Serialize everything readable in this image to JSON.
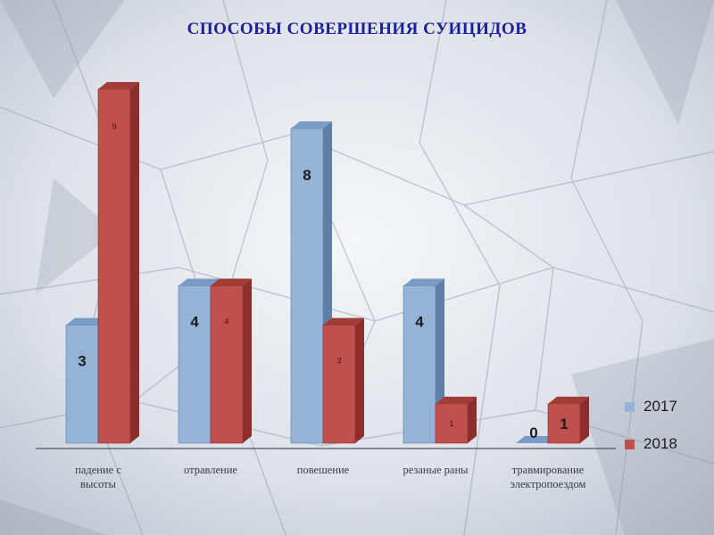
{
  "title": "СПОСОБЫ СОВЕРШЕНИЯ СУИЦИДОВ",
  "colors": {
    "series_2017": "#95b3d7",
    "series_2017_side": "#5f7ea8",
    "series_2017_top": "#7a9bc6",
    "series_2018": "#c0504d",
    "series_2018_side": "#8c2f2c",
    "series_2018_top": "#a13c39",
    "title": "#1d1e9b"
  },
  "chart_data": {
    "type": "bar",
    "title": "СПОСОБЫ СОВЕРШЕНИЯ СУИЦИДОВ",
    "categories": [
      [
        "падение с",
        "высоты"
      ],
      [
        "отравление"
      ],
      [
        "повешение"
      ],
      [
        "резаные раны"
      ],
      [
        "травмирование",
        "электропоездом"
      ]
    ],
    "series": [
      {
        "name": "2017",
        "values": [
          3,
          4,
          8,
          4,
          0
        ],
        "label_style": [
          "big",
          "big",
          "big",
          "big",
          "big"
        ]
      },
      {
        "name": "2018",
        "values": [
          9,
          4,
          3,
          1,
          1
        ],
        "label_style": [
          "small",
          "small",
          "small",
          "small",
          "big"
        ]
      }
    ],
    "ylim": [
      0,
      9
    ],
    "grid": false,
    "legend_position": "right"
  },
  "legend": [
    {
      "label": "2017"
    },
    {
      "label": "2018"
    }
  ]
}
